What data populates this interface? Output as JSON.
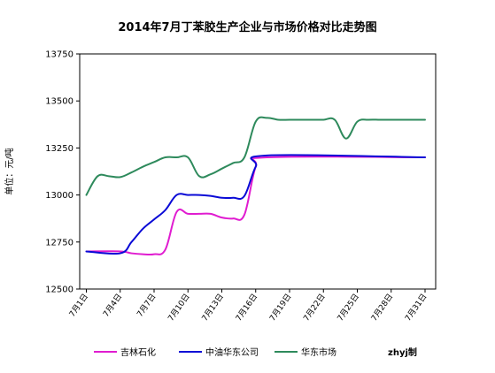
{
  "chart_data": {
    "type": "line",
    "title": "2014年7月丁苯胶生产企业与市场价格对比走势图",
    "ylabel": "单位：元/吨",
    "xlabel": "",
    "x_labels": [
      "7月1日",
      "7月4日",
      "7月7日",
      "7月10日",
      "7月13日",
      "7月16日",
      "7月19日",
      "7月22日",
      "7月25日",
      "7月28日",
      "7月31日"
    ],
    "x_domain": [
      1,
      31
    ],
    "ylim": [
      12500,
      13750
    ],
    "y_ticks": [
      12500,
      12750,
      13000,
      13250,
      13500,
      13750
    ],
    "grid": false,
    "legend_position": "bottom",
    "series": [
      {
        "name": "吉林石化",
        "color": "#e01cd0",
        "x": [
          1,
          4,
          5,
          6,
          7,
          8,
          9,
          10,
          11,
          12,
          13,
          14,
          15,
          16,
          17,
          31
        ],
        "values": [
          12700,
          12700,
          12690,
          12685,
          12685,
          12710,
          12910,
          12900,
          12900,
          12900,
          12880,
          12875,
          12895,
          13150,
          13200,
          13200
        ]
      },
      {
        "name": "中油华东公司",
        "color": "#0a0ad6",
        "x": [
          1,
          4,
          5,
          6,
          7,
          8,
          9,
          10,
          11,
          12,
          13,
          14,
          15,
          16,
          17,
          31
        ],
        "values": [
          12700,
          12690,
          12750,
          12820,
          12870,
          12920,
          13000,
          13000,
          13000,
          12995,
          12985,
          12985,
          12995,
          13150,
          13210,
          13200
        ]
      },
      {
        "name": "华东市场",
        "color": "#2e8a5c",
        "x": [
          1,
          2,
          3,
          4,
          5,
          6,
          7,
          8,
          9,
          10,
          11,
          12,
          13,
          14,
          15,
          16,
          17,
          18,
          19,
          20,
          21,
          22,
          23,
          24,
          25,
          26,
          27,
          28,
          29,
          30,
          31
        ],
        "values": [
          13000,
          13100,
          13100,
          13095,
          13120,
          13150,
          13175,
          13200,
          13200,
          13200,
          13100,
          13110,
          13140,
          13170,
          13200,
          13390,
          13410,
          13400,
          13400,
          13400,
          13400,
          13400,
          13400,
          13300,
          13390,
          13400,
          13400,
          13400,
          13400,
          13400,
          13400
        ]
      }
    ],
    "watermark": "zhyj制"
  }
}
